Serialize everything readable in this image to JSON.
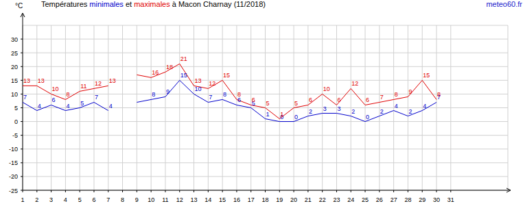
{
  "chart_data": {
    "type": "line",
    "title": "Températures minimales et maximales à Macon Charnay (11/2018)",
    "y_label": "°C",
    "source": "meteo60.fr",
    "x": [
      1,
      2,
      3,
      4,
      5,
      6,
      7,
      8,
      9,
      10,
      11,
      12,
      13,
      14,
      15,
      16,
      17,
      18,
      19,
      20,
      21,
      22,
      23,
      24,
      25,
      26,
      27,
      28,
      29,
      30,
      31
    ],
    "xlim": [
      1,
      35
    ],
    "xticks": [
      1,
      2,
      3,
      4,
      5,
      6,
      7,
      8,
      9,
      10,
      11,
      12,
      13,
      14,
      15,
      16,
      17,
      18,
      19,
      20,
      21,
      22,
      23,
      24,
      25,
      26,
      27,
      28,
      29,
      30,
      31
    ],
    "ylim": [
      -25,
      35
    ],
    "yticks": [
      -25,
      -20,
      -15,
      -10,
      -5,
      0,
      5,
      10,
      15,
      20,
      25,
      30
    ],
    "grid": true,
    "data_labels": true,
    "series": [
      {
        "name": "minimales",
        "color": "#0000cc",
        "values": [
          7,
          4,
          6,
          4,
          5,
          7,
          4,
          null,
          7,
          8,
          9,
          15,
          10,
          7,
          8,
          6,
          5,
          1,
          0,
          0,
          2,
          3,
          3,
          2,
          0,
          2,
          4,
          2,
          4,
          7,
          null
        ],
        "value_labels": [
          "7",
          "4",
          "6",
          "4",
          "5",
          "7",
          "4",
          null,
          null,
          "8",
          "9",
          "15",
          "10",
          "7",
          "8",
          "6",
          "5",
          "1",
          "0",
          "0",
          "2",
          "3",
          "3",
          "2",
          "0",
          "2",
          "4",
          "2",
          "4",
          "7",
          null
        ]
      },
      {
        "name": "maximales",
        "color": "#e00000",
        "values": [
          13,
          13,
          10,
          8,
          11,
          12,
          13,
          null,
          17,
          16,
          18,
          21,
          13,
          12,
          15,
          8,
          6,
          5,
          1,
          5,
          6,
          10,
          6,
          12,
          6,
          7,
          8,
          9,
          15,
          8,
          null
        ],
        "value_labels": [
          "13",
          "13",
          "10",
          "8",
          "11",
          "12",
          "13",
          null,
          null,
          "16",
          "18",
          "21",
          "13",
          "12",
          "15",
          "8",
          "6",
          "5",
          "1",
          "5",
          "6",
          "10",
          "6",
          "12",
          "6",
          "7",
          "8",
          "9",
          "15",
          "8",
          null
        ]
      }
    ]
  }
}
